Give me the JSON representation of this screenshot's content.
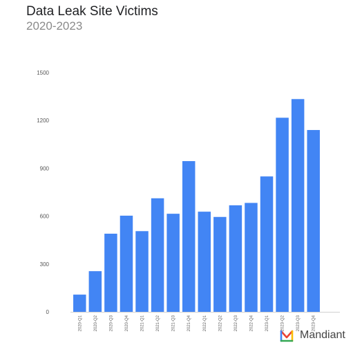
{
  "chart_data": {
    "type": "bar",
    "title": "Data Leak Site Victims",
    "subtitle": "2020-2023",
    "xlabel": "",
    "ylabel": "",
    "categories": [
      "2020-Q1",
      "2020-Q2",
      "2020-Q3",
      "2020-Q4",
      "2021-Q1",
      "2021-Q2",
      "2021-Q3",
      "2021-Q4",
      "2022-Q1",
      "2022-Q2",
      "2022-Q3",
      "2022-Q4",
      "2023-Q1",
      "2023-Q2",
      "2023-Q3",
      "2023-Q4"
    ],
    "values": [
      108,
      255,
      490,
      603,
      506,
      712,
      615,
      945,
      628,
      595,
      668,
      683,
      849,
      1217,
      1334,
      1140
    ],
    "ylim": [
      0,
      1500
    ],
    "yticks": [
      0,
      300,
      600,
      900,
      1200,
      1500
    ],
    "grid": false,
    "bar_color": "#4285f4"
  },
  "brand": {
    "name": "Mandiant",
    "icon": "mandiant-logo-icon"
  }
}
